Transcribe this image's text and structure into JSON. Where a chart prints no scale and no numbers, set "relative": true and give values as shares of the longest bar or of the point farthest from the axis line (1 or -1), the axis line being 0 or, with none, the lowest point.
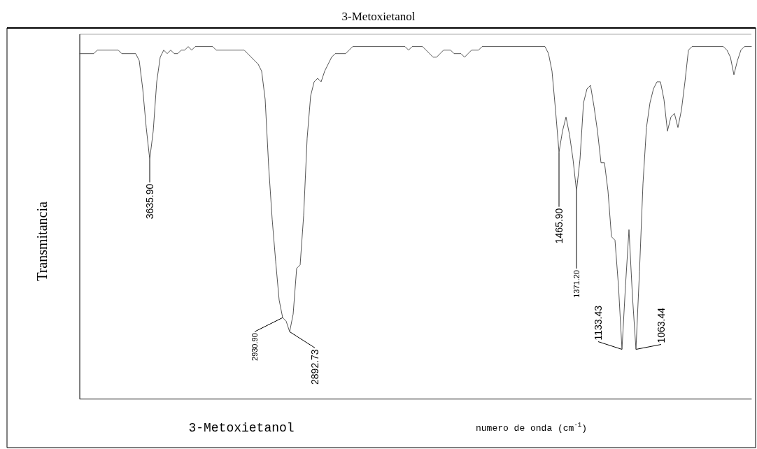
{
  "chart_data": {
    "type": "line",
    "title": "3-Metoxietanol",
    "xlabel": "numero de onda (cm$^{-1}$)",
    "ylabel": "Transmitancia",
    "relative": true,
    "marker": "none",
    "line_style": "solid",
    "categories": [
      null,
      null,
      null,
      null,
      null,
      null,
      null,
      null,
      null,
      null,
      null,
      null,
      null,
      null,
      null,
      null,
      null,
      null,
      null,
      null,
      null,
      null,
      null,
      null,
      null,
      null,
      null,
      null,
      null,
      null,
      null,
      null,
      null,
      null,
      null,
      null,
      null,
      null,
      null,
      null,
      null,
      null,
      null,
      null,
      null,
      null,
      null,
      null,
      null,
      null,
      null,
      null,
      null,
      null,
      null,
      null,
      null,
      null,
      null,
      null,
      null,
      null,
      null,
      null,
      null,
      null,
      null,
      null,
      null,
      null,
      null,
      null,
      null,
      null,
      null,
      null,
      null,
      null,
      null,
      null,
      null,
      null,
      null,
      null,
      null,
      null,
      null,
      null,
      null,
      null,
      null,
      null,
      null,
      null,
      null,
      null,
      null,
      null,
      null,
      null,
      null,
      null,
      null,
      null,
      null,
      null,
      null,
      null,
      null,
      null,
      null,
      null,
      null,
      null,
      null,
      null,
      null,
      null,
      null,
      null,
      null,
      null,
      null,
      null,
      null,
      null,
      null,
      null,
      null,
      null,
      null,
      null,
      null,
      null,
      null,
      null,
      null,
      null,
      null,
      null,
      null,
      null,
      null,
      null,
      null,
      null,
      null,
      null,
      null,
      null,
      null,
      null,
      null,
      null,
      null,
      null,
      null,
      null,
      null,
      null,
      null,
      null,
      null,
      null,
      null,
      null,
      null,
      null,
      null,
      null,
      null,
      null,
      null,
      null,
      null,
      null,
      null,
      null,
      null,
      null,
      null,
      null,
      null,
      null,
      null,
      null,
      null,
      null,
      null,
      null,
      null,
      null,
      null
    ],
    "series": [
      {
        "color": "#555555",
        "values": [
          0.98,
          0.98,
          0.98,
          0.98,
          0.98,
          0.99,
          0.99,
          0.99,
          0.99,
          0.99,
          0.99,
          0.99,
          0.98,
          0.98,
          0.98,
          0.98,
          0.98,
          0.96,
          0.88,
          0.77,
          0.68,
          0.76,
          0.9,
          0.97,
          0.99,
          0.98,
          0.99,
          0.98,
          0.98,
          0.99,
          0.99,
          1,
          0.99,
          1,
          1,
          1,
          1,
          1,
          1,
          0.99,
          0.99,
          0.99,
          0.99,
          0.99,
          0.99,
          0.99,
          0.99,
          0.99,
          0.98,
          0.97,
          0.96,
          0.95,
          0.93,
          0.85,
          0.66,
          0.51,
          0.39,
          0.28,
          0.23,
          0.22,
          0.19,
          0.24,
          0.37,
          0.38,
          0.52,
          0.74,
          0.86,
          0.9,
          0.91,
          0.9,
          0.93,
          0.95,
          0.97,
          0.98,
          0.98,
          0.98,
          0.98,
          0.99,
          1,
          1,
          1,
          1,
          1,
          1,
          1,
          1,
          1,
          1,
          1,
          1,
          1,
          1,
          1,
          1,
          0.99,
          1,
          1,
          1,
          1,
          0.99,
          0.98,
          0.97,
          0.97,
          0.98,
          0.99,
          0.99,
          0.99,
          0.98,
          0.98,
          0.98,
          0.97,
          0.98,
          0.99,
          0.99,
          0.99,
          1,
          1,
          1,
          1,
          1,
          1,
          1,
          1,
          1,
          1,
          1,
          1,
          1,
          1,
          1,
          1,
          1,
          1,
          1,
          0.98,
          0.93,
          0.82,
          0.7,
          0.76,
          0.8,
          0.75,
          0.68,
          0.59,
          0.68,
          0.84,
          0.88,
          0.89,
          0.83,
          0.76,
          0.67,
          0.67,
          0.59,
          0.46,
          0.45,
          0.32,
          0.14,
          0.32,
          0.48,
          0.29,
          0.14,
          0.36,
          0.61,
          0.77,
          0.84,
          0.88,
          0.9,
          0.9,
          0.85,
          0.76,
          0.8,
          0.81,
          0.77,
          0.82,
          0.9,
          0.99,
          1,
          1,
          1,
          1,
          1,
          1,
          1,
          1,
          1,
          1,
          0.99,
          0.97,
          0.92,
          0.96,
          0.99,
          1,
          1,
          1
        ]
      }
    ],
    "annotations": [
      "3635.90",
      "2930.90",
      "2892.73",
      "1465.90",
      "1371.20",
      "1133.43",
      "1063.44",
      "3-Metoxietanol"
    ]
  }
}
